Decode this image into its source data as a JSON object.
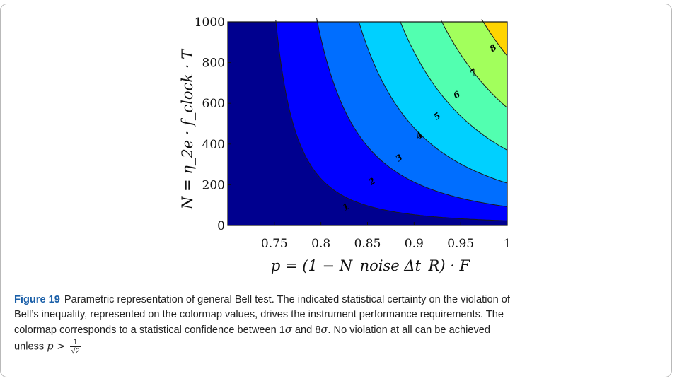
{
  "figure": {
    "label": "Figure 19",
    "caption_line1": "Parametric representation of general Bell test. The indicated statistical certainty on the violation of",
    "caption_line2": "Bell’s inequality, represented on the colormap values, drives the instrument performance requirements. The",
    "caption_line3a": "colormap corresponds to a statistical confidence between 1",
    "sigma": "σ",
    "caption_and": " and 8",
    "caption_line3b": ". No violation at all can be achieved",
    "caption_line4": "unless",
    "caption_p_gt": "p >",
    "frac_num": "1",
    "frac_den": "√2"
  },
  "chart_data": {
    "type": "heatmap",
    "subtype": "filled-contour",
    "xlabel": "p = (1 − N_noise Δt_R) · F",
    "ylabel": "N = η_2e · f_clock · T",
    "xlim": [
      0.707,
      1.0
    ],
    "ylim": [
      0,
      1000
    ],
    "x_tick_labels": [
      "0.75",
      "0.8",
      "0.85",
      "0.9",
      "0.95",
      "1"
    ],
    "x_ticks": [
      0.75,
      0.8,
      0.85,
      0.9,
      0.95,
      1.0
    ],
    "y_tick_labels": [
      "0",
      "200",
      "400",
      "600",
      "800",
      "1000"
    ],
    "y_ticks": [
      0,
      200,
      400,
      600,
      800,
      1000
    ],
    "colormap": "jet",
    "levels": [
      1,
      2,
      3,
      4,
      5,
      6,
      7,
      8
    ],
    "level_labels": [
      "1",
      "2",
      "3",
      "4",
      "5",
      "6",
      "7",
      "8"
    ],
    "level_label_positions_data": [
      {
        "level": "1",
        "x": 0.827,
        "y": 90
      },
      {
        "level": "2",
        "x": 0.855,
        "y": 215
      },
      {
        "level": "3",
        "x": 0.884,
        "y": 330
      },
      {
        "level": "4",
        "x": 0.906,
        "y": 440
      },
      {
        "level": "5",
        "x": 0.925,
        "y": 535
      },
      {
        "level": "6",
        "x": 0.946,
        "y": 640
      },
      {
        "level": "7",
        "x": 0.964,
        "y": 750
      },
      {
        "level": "8",
        "x": 0.985,
        "y": 870
      }
    ],
    "band_colors": [
      "#00008f",
      "#0000ff",
      "#006eff",
      "#00d0ff",
      "#52ffb0",
      "#a2ff5c",
      "#ffd400",
      "#ff6a00",
      "#e00000"
    ],
    "grid": false,
    "legend": "none"
  }
}
